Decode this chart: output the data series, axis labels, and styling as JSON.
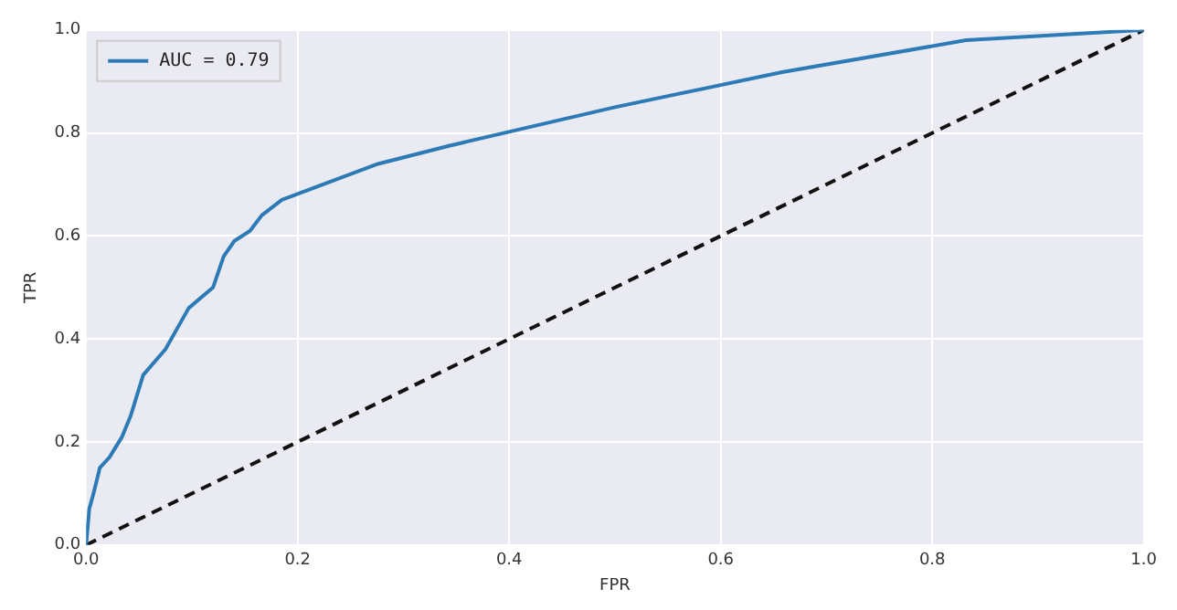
{
  "chart_data": {
    "type": "line",
    "xlabel": "FPR",
    "ylabel": "TPR",
    "xlim": [
      0,
      1
    ],
    "ylim": [
      0,
      1
    ],
    "xticks": [
      {
        "value": 0,
        "label": "0.0"
      },
      {
        "value": 0.2,
        "label": "0.2"
      },
      {
        "value": 0.4,
        "label": "0.4"
      },
      {
        "value": 0.6,
        "label": "0.6"
      },
      {
        "value": 0.8,
        "label": "0.8"
      },
      {
        "value": 1,
        "label": "1.0"
      }
    ],
    "yticks": [
      {
        "value": 0,
        "label": "0.0"
      },
      {
        "value": 0.2,
        "label": "0.2"
      },
      {
        "value": 0.4,
        "label": "0.4"
      },
      {
        "value": 0.6,
        "label": "0.6"
      },
      {
        "value": 0.8,
        "label": "0.8"
      },
      {
        "value": 1,
        "label": "1.0"
      }
    ],
    "grid": true,
    "legend": "top left",
    "marker": "none",
    "series": [
      {
        "name": "AUC = 0.79",
        "color": "#2c7bb6",
        "line_style": "solid",
        "x": [
          0,
          0.003,
          0.007,
          0.013,
          0.022,
          0.034,
          0.042,
          0.054,
          0.075,
          0.097,
          0.12,
          0.13,
          0.14,
          0.155,
          0.166,
          0.185,
          0.276,
          0.343,
          0.5,
          0.658,
          0.832,
          1
        ],
        "values": [
          0,
          0.07,
          0.1,
          0.15,
          0.17,
          0.21,
          0.25,
          0.33,
          0.38,
          0.46,
          0.5,
          0.56,
          0.59,
          0.61,
          0.64,
          0.67,
          0.74,
          0.775,
          0.85,
          0.918,
          0.98,
          1
        ]
      },
      {
        "color": "#111111",
        "line_style": "dashed",
        "x": [
          0,
          1
        ],
        "values": [
          0,
          1
        ]
      }
    ]
  }
}
